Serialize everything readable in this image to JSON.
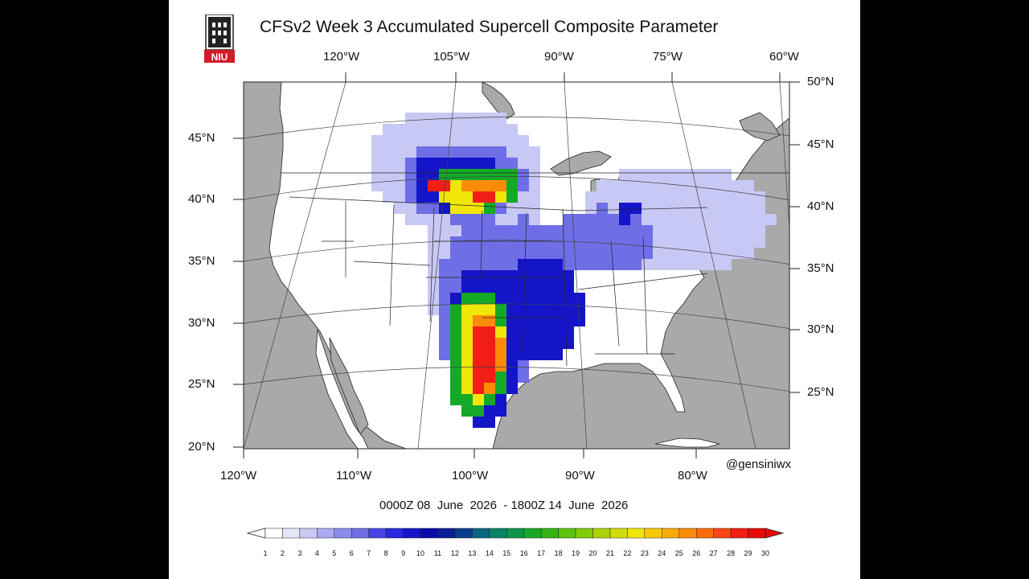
{
  "title": "CFSv2 Week 3 Accumulated Supercell Composite Parameter",
  "logo": {
    "text": "NIU",
    "colors": {
      "bg": "#d01c2a",
      "fg": "#ffffff",
      "tower": "#222222"
    }
  },
  "top_lon_labels": [
    "120°W",
    "105°W",
    "90°W",
    "75°W",
    "60°W"
  ],
  "bottom_lon_labels": [
    "120°W",
    "110°W",
    "100°W",
    "90°W",
    "80°W"
  ],
  "left_lat_labels": [
    "45°N",
    "40°N",
    "35°N",
    "30°N",
    "25°N",
    "20°N"
  ],
  "right_lat_labels": [
    "50°N",
    "45°N",
    "40°N",
    "35°N",
    "30°N",
    "25°N"
  ],
  "credit": "@gensiniwx",
  "date_range": "0000Z 08  June  2026  - 1800Z 14  June  2026",
  "colorbar": {
    "ticks": [
      "1",
      "2",
      "3",
      "4",
      "5",
      "6",
      "7",
      "8",
      "9",
      "10",
      "11",
      "12",
      "13",
      "14",
      "15",
      "16",
      "17",
      "18",
      "19",
      "20",
      "21",
      "22",
      "23",
      "24",
      "25",
      "26",
      "27",
      "28",
      "29",
      "30"
    ],
    "colors": [
      "#ffffff",
      "#e6e6fa",
      "#c8c8f5",
      "#aaaaf0",
      "#8c8ceb",
      "#6e6ee6",
      "#4646e6",
      "#2828dc",
      "#1414c8",
      "#0a0aa8",
      "#0a1e96",
      "#0a3c8c",
      "#0a6482",
      "#0a8264",
      "#0a9646",
      "#14aa28",
      "#32b414",
      "#5ac30a",
      "#82cd0a",
      "#aad20a",
      "#d2dc0a",
      "#f0e60a",
      "#fac80a",
      "#faaa0a",
      "#fa8c0a",
      "#fa6e0a",
      "#fa4614",
      "#f01e14",
      "#e60a0a"
    ]
  },
  "map_colors": {
    "ocean": "#a9a9a9",
    "land": "#ffffff",
    "border": "#222222",
    "grid": "#444444"
  },
  "field_description_levels": {
    "low": "#c8c8f5",
    "med": "#6e6ee6",
    "high": "#1414c8",
    "green": "#14aa28",
    "yellow": "#f0e60a",
    "orange": "#fa8c0a",
    "red": "#f01e14"
  }
}
